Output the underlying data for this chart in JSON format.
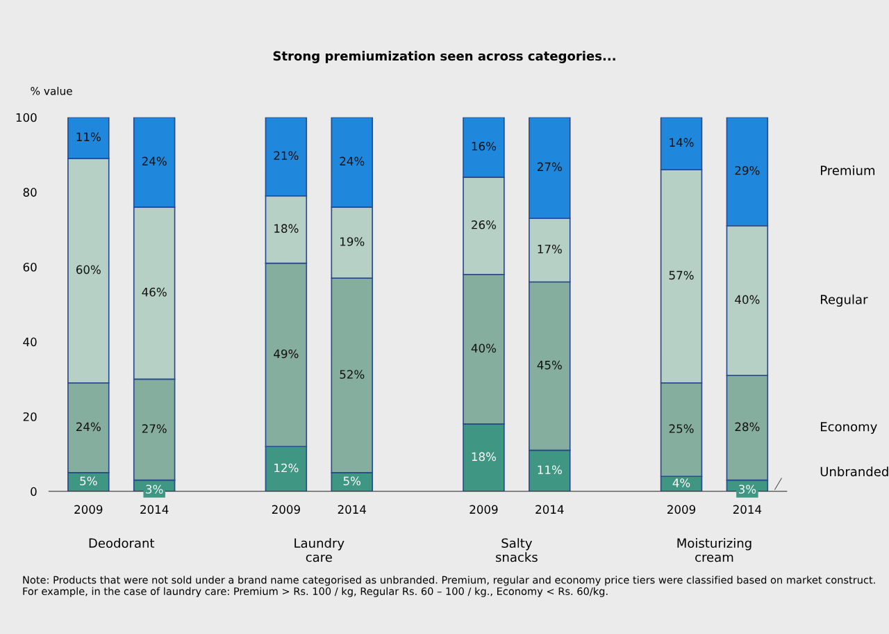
{
  "chart_data": {
    "type": "bar",
    "title": "Strong premiumization seen across categories...",
    "ylabel": "% value",
    "categories": [
      "2009",
      "2014",
      "2009",
      "2014",
      "2009",
      "2014",
      "2009",
      "2014"
    ],
    "stacked": true,
    "legend": false,
    "grid": false,
    "ylim": [
      0,
      100
    ],
    "yticks": [
      0,
      20,
      40,
      60,
      80,
      100
    ],
    "series": [
      {
        "name": "Unbranded",
        "color": "#3f9682",
        "values": [
          5,
          3,
          12,
          5,
          18,
          11,
          4,
          3
        ],
        "value_labels": [
          "5%",
          "3%",
          "12%",
          "5%",
          "18%",
          "11%",
          "4%",
          "3%"
        ]
      },
      {
        "name": "Economy",
        "color": "#86ae9e",
        "values": [
          24,
          27,
          49,
          52,
          40,
          45,
          25,
          28
        ],
        "value_labels": [
          "24%",
          "27%",
          "49%",
          "52%",
          "40%",
          "45%",
          "25%",
          "28%"
        ]
      },
      {
        "name": "Regular",
        "color": "#b6d0c6",
        "values": [
          60,
          46,
          18,
          19,
          26,
          17,
          57,
          40
        ],
        "value_labels": [
          "60%",
          "46%",
          "18%",
          "19%",
          "26%",
          "17%",
          "57%",
          "40%"
        ]
      },
      {
        "name": "Premium",
        "color": "#1f88dc",
        "values": [
          11,
          24,
          21,
          24,
          16,
          27,
          14,
          29
        ],
        "value_labels": [
          "11%",
          "24%",
          "21%",
          "24%",
          "16%",
          "27%",
          "14%",
          "29%"
        ]
      }
    ],
    "annotations": [
      "Deodorant",
      "Laundry\ncare",
      "Salty\nsnacks",
      "Moisturizing\ncream",
      "Note: Products that were not sold under a brand name categorised as unbranded. Premium, regular and economy price tiers were classified based on market construct. For example, in the case of laundry care: Premium > Rs. 100 / kg, Regular Rs. 60 – 100 / kg., Economy < Rs. 60/kg."
    ]
  }
}
